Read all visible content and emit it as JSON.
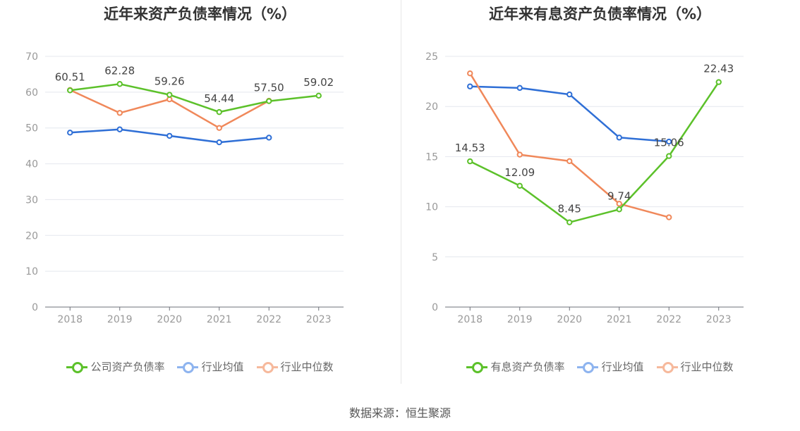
{
  "source": "数据来源：恒生聚源",
  "chart_data": [
    {
      "type": "line",
      "title": "近年来资产负债率情况（%）",
      "categories": [
        "2018",
        "2019",
        "2020",
        "2021",
        "2022",
        "2023"
      ],
      "ylim": [
        0,
        70
      ],
      "yticks": [
        0,
        10,
        20,
        30,
        40,
        50,
        60,
        70
      ],
      "grid": true,
      "legend_position": "bottom",
      "series": [
        {
          "name": "公司资产负债率",
          "color": "#5cc12a",
          "labels": true,
          "values": [
            60.51,
            62.28,
            59.26,
            54.44,
            57.5,
            59.02
          ],
          "label_text": [
            "60.51",
            "62.28",
            "59.26",
            "54.44",
            "57.50",
            "59.02"
          ]
        },
        {
          "name": "行业均值",
          "color": "#2f6fd6",
          "legend_color": "#8eb4ef",
          "values": [
            48.7,
            49.6,
            47.8,
            46.0,
            47.3,
            null
          ]
        },
        {
          "name": "行业中位数",
          "color": "#f0885a",
          "legend_color": "#f6b99c",
          "values": [
            60.6,
            54.2,
            58.0,
            50.0,
            57.6,
            null
          ]
        }
      ]
    },
    {
      "type": "line",
      "title": "近年来有息资产负债率情况（%）",
      "categories": [
        "2018",
        "2019",
        "2020",
        "2021",
        "2022",
        "2023"
      ],
      "ylim": [
        0,
        25
      ],
      "yticks": [
        0,
        5,
        10,
        15,
        20,
        25
      ],
      "grid": true,
      "legend_position": "bottom",
      "series": [
        {
          "name": "有息资产负债率",
          "color": "#5cc12a",
          "labels": true,
          "values": [
            14.53,
            12.09,
            8.45,
            9.74,
            15.06,
            22.43
          ],
          "label_text": [
            "14.53",
            "12.09",
            "8.45",
            "9.74",
            "15.06",
            "22.43"
          ]
        },
        {
          "name": "行业均值",
          "color": "#2f6fd6",
          "legend_color": "#8eb4ef",
          "values": [
            22.0,
            21.85,
            21.2,
            16.9,
            16.5,
            null
          ]
        },
        {
          "name": "行业中位数",
          "color": "#f0885a",
          "legend_color": "#f6b99c",
          "values": [
            23.3,
            15.2,
            14.55,
            10.3,
            8.95,
            null
          ]
        }
      ]
    }
  ]
}
